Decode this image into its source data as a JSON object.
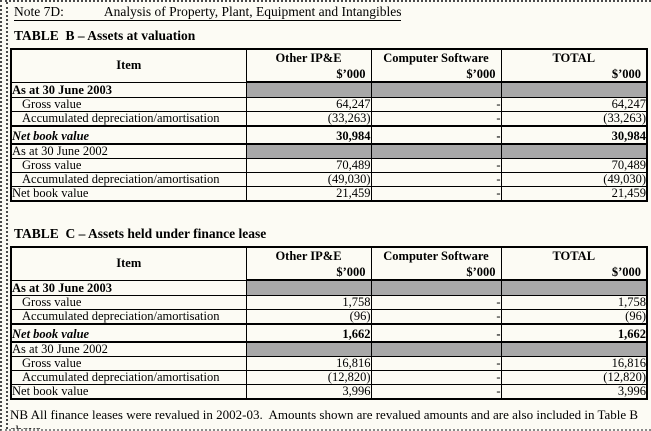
{
  "page": {
    "note_label": "Note 7D:",
    "note_title": "Analysis of Property, Plant, Equipment and Intangibles",
    "footnote": "NB All finance leases were revalued in 2002-03.  Amounts shown are revalued amounts and are also included in Table B above."
  },
  "colors": {
    "shaded_cell": "#a8a8a8",
    "page_background": "#fcfbf4",
    "table_border": "#000000"
  },
  "tables": [
    {
      "title": "TABLE  B – Assets at valuation",
      "columns": [
        "Item",
        "Other IP&E",
        "Computer Software",
        "TOTAL"
      ],
      "unit_label": "$’000",
      "sections": [
        {
          "heading": "As at 30 June 2003",
          "heading_bold": true,
          "rows": [
            {
              "label": "Gross value",
              "values": [
                "64,247",
                "-",
                "64,247"
              ],
              "style": "data"
            },
            {
              "label": "Accumulated depreciation/amortisation",
              "values": [
                "(33,263)",
                "-",
                "(33,263)"
              ],
              "style": "data"
            },
            {
              "label": "Net book value",
              "values": [
                "30,984",
                "-",
                "30,984"
              ],
              "style": "total-bold"
            }
          ]
        },
        {
          "heading": "As at 30 June 2002",
          "heading_bold": false,
          "rows": [
            {
              "label": "Gross value",
              "values": [
                "70,489",
                "-",
                "70,489"
              ],
              "style": "data"
            },
            {
              "label": "Accumulated depreciation/amortisation",
              "values": [
                "(49,030)",
                "-",
                "(49,030)"
              ],
              "style": "data"
            },
            {
              "label": "Net book value",
              "values": [
                "21,459",
                "-",
                "21,459"
              ],
              "style": "total-plain"
            }
          ]
        }
      ]
    },
    {
      "title": "TABLE  C – Assets held under finance lease",
      "columns": [
        "Item",
        "Other IP&E",
        "Computer Software",
        "TOTAL"
      ],
      "unit_label": "$’000",
      "sections": [
        {
          "heading": "As at 30 June 2003",
          "heading_bold": true,
          "rows": [
            {
              "label": "Gross value",
              "values": [
                "1,758",
                "-",
                "1,758"
              ],
              "style": "data"
            },
            {
              "label": "Accumulated depreciation/amortisation",
              "values": [
                "(96)",
                "-",
                "(96)"
              ],
              "style": "data"
            },
            {
              "label": "Net book value",
              "values": [
                "1,662",
                "-",
                "1,662"
              ],
              "style": "total-bold"
            }
          ]
        },
        {
          "heading": "As at 30 June 2002",
          "heading_bold": false,
          "rows": [
            {
              "label": "Gross value",
              "values": [
                "16,816",
                "-",
                "16,816"
              ],
              "style": "data"
            },
            {
              "label": "Accumulated depreciation/amortisation",
              "values": [
                "(12,820)",
                "-",
                "(12,820)"
              ],
              "style": "data"
            },
            {
              "label": "Net book value",
              "values": [
                "3,996",
                "-",
                "3,996"
              ],
              "style": "total-plain"
            }
          ]
        }
      ]
    }
  ]
}
